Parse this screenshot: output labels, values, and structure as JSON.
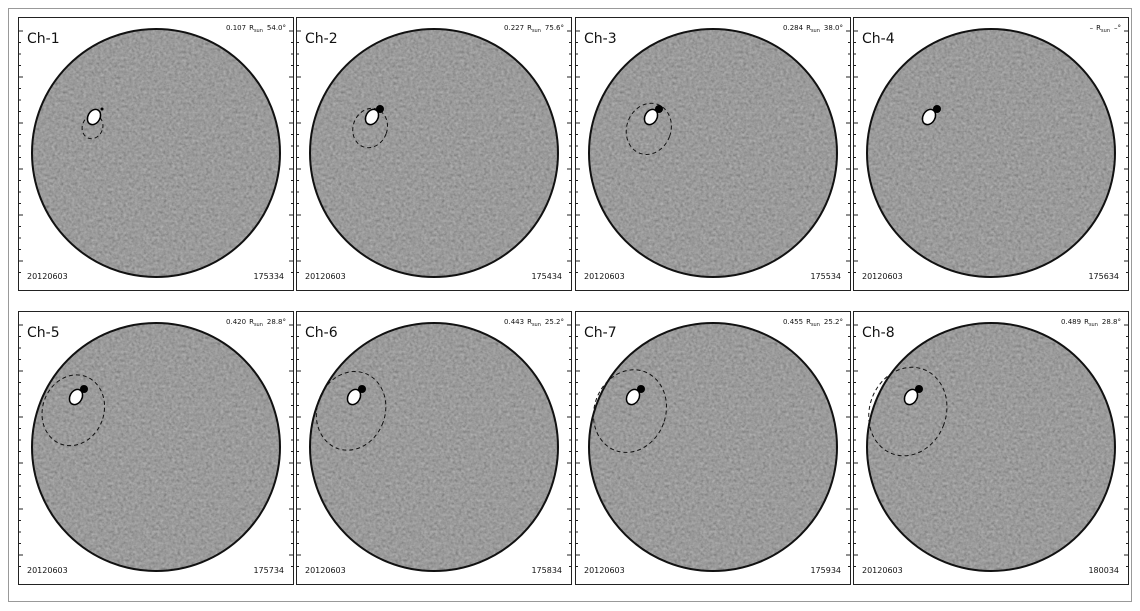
{
  "panels": [
    {
      "label": "Ch-1",
      "radius": "0.107",
      "unit": "R",
      "unit_sub": "sun",
      "angle": "54.0°",
      "date": "20120603",
      "time": "175334"
    },
    {
      "label": "Ch-2",
      "radius": "0.227",
      "unit": "R",
      "unit_sub": "sun",
      "angle": "75.6°",
      "date": "20120603",
      "time": "175434"
    },
    {
      "label": "Ch-3",
      "radius": "0.284",
      "unit": "R",
      "unit_sub": "sun",
      "angle": "38.0°",
      "date": "20120603",
      "time": "175534"
    },
    {
      "label": "Ch-4",
      "radius": "–",
      "unit": "R",
      "unit_sub": "sun",
      "angle": "–°",
      "date": "20120603",
      "time": "175634"
    },
    {
      "label": "Ch-5",
      "radius": "0.420",
      "unit": "R",
      "unit_sub": "sun",
      "angle": "28.8°",
      "date": "20120603",
      "time": "175734"
    },
    {
      "label": "Ch-6",
      "radius": "0.443",
      "unit": "R",
      "unit_sub": "sun",
      "angle": "25.2°",
      "date": "20120603",
      "time": "175834"
    },
    {
      "label": "Ch-7",
      "radius": "0.455",
      "unit": "R",
      "unit_sub": "sun",
      "angle": "25.2°",
      "date": "20120603",
      "time": "175934"
    },
    {
      "label": "Ch-8",
      "radius": "0.489",
      "unit": "R",
      "unit_sub": "sun",
      "angle": "28.8°",
      "date": "20120603",
      "time": "180034"
    }
  ]
}
